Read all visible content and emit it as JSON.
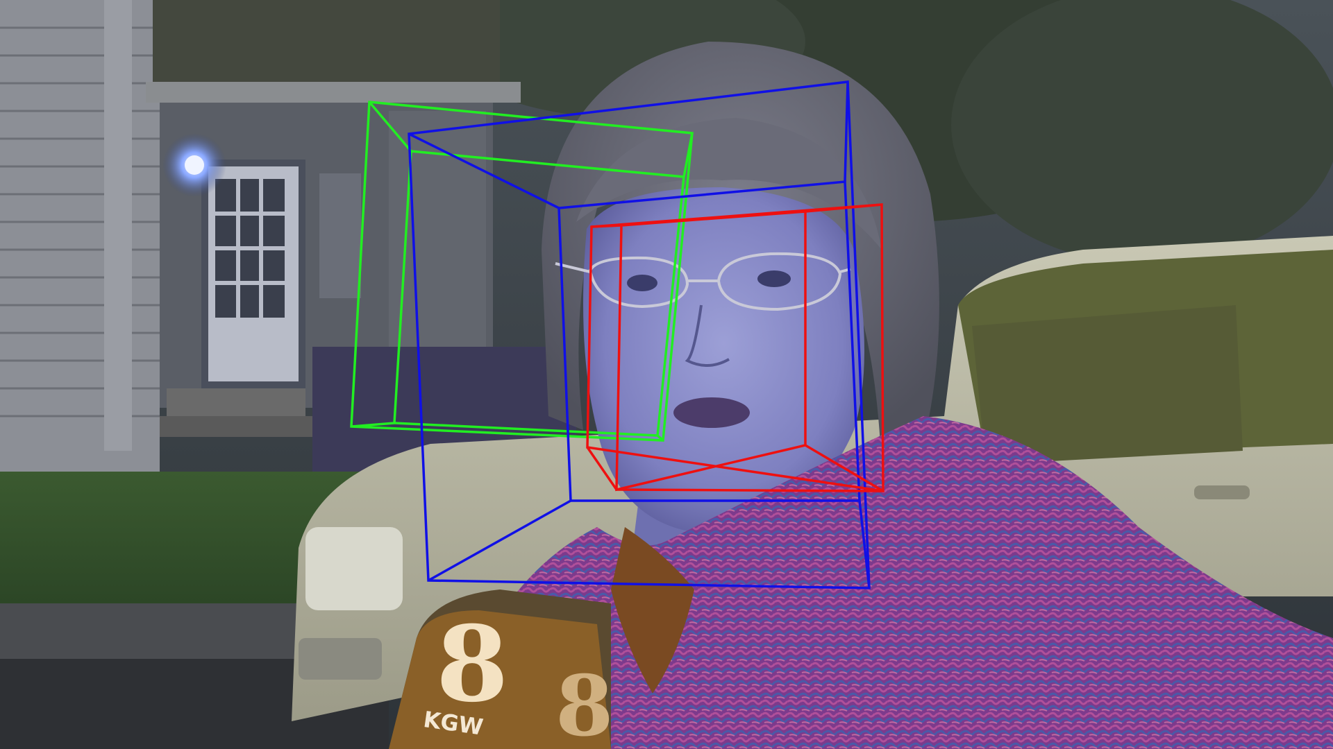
{
  "scene": {
    "description_free": true
  },
  "microphone": {
    "logo_number": "8",
    "logo_text": "KGW"
  },
  "pose_boxes": {
    "colors": {
      "green": "#22ee22",
      "blue": "#1010e6",
      "red": "#ee1010"
    }
  }
}
